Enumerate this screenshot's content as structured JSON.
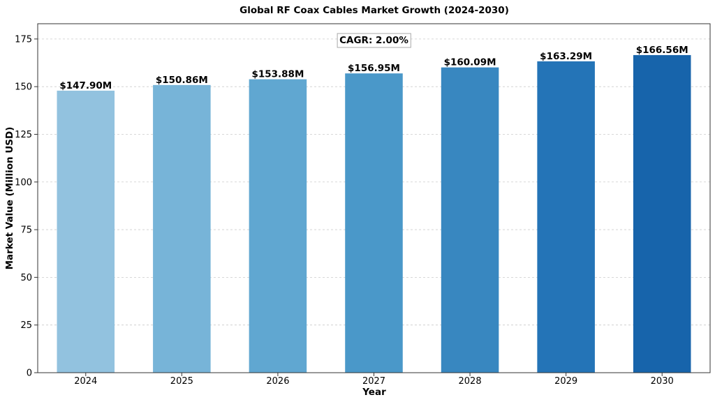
{
  "chart_data": {
    "type": "bar",
    "title": "Global RF Coax Cables Market Growth (2024-2030)",
    "xlabel": "Year",
    "ylabel": "Market Value (Million USD)",
    "categories": [
      "2024",
      "2025",
      "2026",
      "2027",
      "2028",
      "2029",
      "2030"
    ],
    "values": [
      147.9,
      150.86,
      153.88,
      156.95,
      160.09,
      163.29,
      166.56
    ],
    "data_labels": [
      "$147.90M",
      "$150.86M",
      "$153.88M",
      "$156.95M",
      "$160.09M",
      "$163.29M",
      "$166.56M"
    ],
    "ylim": [
      0,
      183
    ],
    "yticks": [
      0,
      25,
      50,
      75,
      100,
      125,
      150,
      175
    ],
    "grid": true,
    "annotation": "CAGR: 2.00%",
    "colors": [
      "#92c2df",
      "#77b4d8",
      "#60a7d1",
      "#4a98c9",
      "#3887c0",
      "#2474b7",
      "#1764ab"
    ]
  }
}
